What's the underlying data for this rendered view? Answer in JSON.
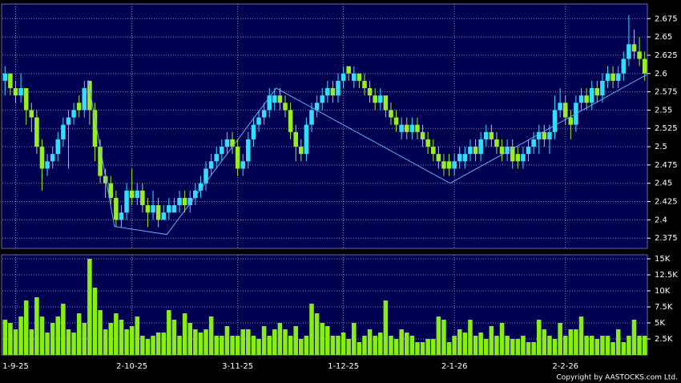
{
  "chart_data": {
    "type": "candlestick",
    "categories": [
      null,
      null,
      "1-9-25",
      null,
      null,
      null,
      null,
      null,
      null,
      null,
      null,
      null,
      null,
      null,
      null,
      null,
      null,
      null,
      null,
      null,
      null,
      null,
      null,
      null,
      "2-10-25",
      null,
      null,
      null,
      null,
      null,
      null,
      null,
      null,
      null,
      null,
      null,
      null,
      null,
      null,
      null,
      null,
      null,
      null,
      null,
      "3-11-25",
      null,
      null,
      null,
      null,
      null,
      null,
      null,
      null,
      null,
      null,
      null,
      null,
      null,
      null,
      null,
      null,
      null,
      null,
      null,
      "1-12-25",
      null,
      null,
      null,
      null,
      null,
      null,
      null,
      null,
      null,
      null,
      null,
      null,
      null,
      null,
      null,
      null,
      null,
      null,
      null,
      null,
      "2-1-26",
      null,
      null,
      null,
      null,
      null,
      null,
      null,
      null,
      null,
      null,
      null,
      null,
      null,
      null,
      null,
      null,
      null,
      null,
      null,
      null,
      "2-2-26",
      null,
      null,
      null,
      null,
      null,
      null,
      null,
      null,
      null,
      null,
      null,
      null,
      null,
      null,
      null
    ],
    "price": {
      "up_color": "#33ddff",
      "down_color": "#99ee22",
      "ylim": [
        2.361,
        2.695
      ],
      "yticks": [
        2.375,
        2.4,
        2.425,
        2.45,
        2.475,
        2.5,
        2.525,
        2.55,
        2.575,
        2.6,
        2.625,
        2.65,
        2.675
      ],
      "values": [
        [
          2.59,
          2.61,
          2.57,
          2.6
        ],
        [
          2.6,
          2.6,
          2.57,
          2.58
        ],
        [
          2.58,
          2.59,
          2.56,
          2.57
        ],
        [
          2.57,
          2.6,
          2.56,
          2.58
        ],
        [
          2.58,
          2.58,
          2.53,
          2.55
        ],
        [
          2.55,
          2.56,
          2.52,
          2.54
        ],
        [
          2.54,
          2.55,
          2.49,
          2.5
        ],
        [
          2.5,
          2.51,
          2.44,
          2.47
        ],
        [
          2.47,
          2.49,
          2.46,
          2.48
        ],
        [
          2.48,
          2.5,
          2.47,
          2.49
        ],
        [
          2.49,
          2.52,
          2.48,
          2.51
        ],
        [
          2.51,
          2.54,
          2.5,
          2.53
        ],
        [
          2.53,
          2.55,
          2.47,
          2.54
        ],
        [
          2.54,
          2.56,
          2.53,
          2.55
        ],
        [
          2.56,
          2.57,
          2.54,
          2.55
        ],
        [
          2.55,
          2.59,
          2.54,
          2.58
        ],
        [
          2.59,
          2.59,
          2.53,
          2.55
        ],
        [
          2.55,
          2.56,
          2.48,
          2.5
        ],
        [
          2.5,
          2.51,
          2.45,
          2.46
        ],
        [
          2.46,
          2.47,
          2.43,
          2.45
        ],
        [
          2.45,
          2.46,
          2.42,
          2.43
        ],
        [
          2.43,
          2.44,
          2.39,
          2.4
        ],
        [
          2.4,
          2.42,
          2.39,
          2.41
        ],
        [
          2.41,
          2.45,
          2.4,
          2.44
        ],
        [
          2.44,
          2.47,
          2.42,
          2.43
        ],
        [
          2.43,
          2.45,
          2.42,
          2.44
        ],
        [
          2.44,
          2.45,
          2.41,
          2.42
        ],
        [
          2.42,
          2.43,
          2.39,
          2.41
        ],
        [
          2.41,
          2.44,
          2.4,
          2.42
        ],
        [
          2.42,
          2.43,
          2.39,
          2.4
        ],
        [
          2.4,
          2.42,
          2.4,
          2.41
        ],
        [
          2.41,
          2.43,
          2.4,
          2.42
        ],
        [
          2.41,
          2.43,
          2.41,
          2.42
        ],
        [
          2.42,
          2.44,
          2.41,
          2.43
        ],
        [
          2.43,
          2.44,
          2.41,
          2.42
        ],
        [
          2.42,
          2.44,
          2.41,
          2.43
        ],
        [
          2.43,
          2.45,
          2.42,
          2.44
        ],
        [
          2.44,
          2.46,
          2.43,
          2.45
        ],
        [
          2.45,
          2.48,
          2.44,
          2.47
        ],
        [
          2.47,
          2.49,
          2.46,
          2.48
        ],
        [
          2.48,
          2.5,
          2.47,
          2.49
        ],
        [
          2.49,
          2.51,
          2.48,
          2.5
        ],
        [
          2.5,
          2.52,
          2.49,
          2.51
        ],
        [
          2.51,
          2.52,
          2.49,
          2.5
        ],
        [
          2.5,
          2.51,
          2.46,
          2.47
        ],
        [
          2.47,
          2.49,
          2.46,
          2.48
        ],
        [
          2.48,
          2.52,
          2.47,
          2.51
        ],
        [
          2.51,
          2.54,
          2.5,
          2.53
        ],
        [
          2.53,
          2.55,
          2.52,
          2.54
        ],
        [
          2.54,
          2.56,
          2.53,
          2.55
        ],
        [
          2.55,
          2.58,
          2.54,
          2.57
        ],
        [
          2.56,
          2.58,
          2.55,
          2.57
        ],
        [
          2.57,
          2.58,
          2.55,
          2.56
        ],
        [
          2.56,
          2.57,
          2.54,
          2.55
        ],
        [
          2.55,
          2.56,
          2.51,
          2.52
        ],
        [
          2.52,
          2.53,
          2.48,
          2.5
        ],
        [
          2.5,
          2.51,
          2.48,
          2.49
        ],
        [
          2.49,
          2.54,
          2.48,
          2.53
        ],
        [
          2.53,
          2.56,
          2.52,
          2.55
        ],
        [
          2.55,
          2.57,
          2.54,
          2.56
        ],
        [
          2.56,
          2.58,
          2.55,
          2.57
        ],
        [
          2.57,
          2.59,
          2.56,
          2.58
        ],
        [
          2.58,
          2.59,
          2.56,
          2.57
        ],
        [
          2.57,
          2.6,
          2.56,
          2.59
        ],
        [
          2.59,
          2.61,
          2.58,
          2.6
        ],
        [
          2.61,
          2.61,
          2.59,
          2.6
        ],
        [
          2.59,
          2.61,
          2.58,
          2.6
        ],
        [
          2.6,
          2.6,
          2.58,
          2.59
        ],
        [
          2.59,
          2.6,
          2.57,
          2.58
        ],
        [
          2.58,
          2.59,
          2.56,
          2.57
        ],
        [
          2.57,
          2.58,
          2.55,
          2.56
        ],
        [
          2.56,
          2.58,
          2.55,
          2.57
        ],
        [
          2.57,
          2.57,
          2.54,
          2.55
        ],
        [
          2.55,
          2.56,
          2.53,
          2.54
        ],
        [
          2.54,
          2.55,
          2.52,
          2.53
        ],
        [
          2.52,
          2.54,
          2.51,
          2.53
        ],
        [
          2.53,
          2.54,
          2.51,
          2.52
        ],
        [
          2.52,
          2.54,
          2.51,
          2.53
        ],
        [
          2.53,
          2.54,
          2.51,
          2.52
        ],
        [
          2.52,
          2.53,
          2.5,
          2.51
        ],
        [
          2.51,
          2.52,
          2.49,
          2.5
        ],
        [
          2.5,
          2.51,
          2.48,
          2.49
        ],
        [
          2.49,
          2.5,
          2.47,
          2.48
        ],
        [
          2.48,
          2.49,
          2.46,
          2.47
        ],
        [
          2.48,
          2.49,
          2.46,
          2.47
        ],
        [
          2.47,
          2.49,
          2.46,
          2.48
        ],
        [
          2.48,
          2.5,
          2.47,
          2.49
        ],
        [
          2.48,
          2.5,
          2.47,
          2.49
        ],
        [
          2.49,
          2.51,
          2.48,
          2.5
        ],
        [
          2.5,
          2.51,
          2.48,
          2.49
        ],
        [
          2.49,
          2.52,
          2.48,
          2.51
        ],
        [
          2.51,
          2.53,
          2.5,
          2.52
        ],
        [
          2.52,
          2.53,
          2.5,
          2.51
        ],
        [
          2.51,
          2.52,
          2.49,
          2.5
        ],
        [
          2.5,
          2.51,
          2.48,
          2.49
        ],
        [
          2.49,
          2.51,
          2.48,
          2.5
        ],
        [
          2.5,
          2.51,
          2.47,
          2.48
        ],
        [
          2.49,
          2.5,
          2.47,
          2.48
        ],
        [
          2.48,
          2.5,
          2.47,
          2.49
        ],
        [
          2.49,
          2.51,
          2.48,
          2.5
        ],
        [
          2.5,
          2.52,
          2.49,
          2.51
        ],
        [
          2.51,
          2.53,
          2.49,
          2.52
        ],
        [
          2.52,
          2.53,
          2.5,
          2.51
        ],
        [
          2.51,
          2.53,
          2.49,
          2.52
        ],
        [
          2.52,
          2.57,
          2.51,
          2.55
        ],
        [
          2.55,
          2.58,
          2.54,
          2.56
        ],
        [
          2.56,
          2.57,
          2.53,
          2.54
        ],
        [
          2.54,
          2.55,
          2.51,
          2.53
        ],
        [
          2.53,
          2.57,
          2.52,
          2.56
        ],
        [
          2.56,
          2.58,
          2.55,
          2.57
        ],
        [
          2.57,
          2.58,
          2.55,
          2.56
        ],
        [
          2.56,
          2.59,
          2.55,
          2.58
        ],
        [
          2.58,
          2.59,
          2.56,
          2.57
        ],
        [
          2.57,
          2.6,
          2.56,
          2.59
        ],
        [
          2.59,
          2.61,
          2.58,
          2.6
        ],
        [
          2.6,
          2.61,
          2.58,
          2.59
        ],
        [
          2.59,
          2.61,
          2.58,
          2.6
        ],
        [
          2.6,
          2.63,
          2.59,
          2.62
        ],
        [
          2.62,
          2.68,
          2.61,
          2.64
        ],
        [
          2.64,
          2.66,
          2.62,
          2.63
        ],
        [
          2.63,
          2.65,
          2.61,
          2.62
        ],
        [
          2.62,
          2.63,
          2.59,
          2.6
        ]
      ]
    },
    "trendline": {
      "color": "#66aaff",
      "x": [
        15.7,
        20.7,
        30.6,
        51.3,
        84.2,
        121.5
      ],
      "values": [
        2.591,
        2.391,
        2.38,
        2.58,
        2.45,
        2.599
      ]
    },
    "volume": {
      "color": "#88ee11",
      "ylim": [
        0,
        15625
      ],
      "yticks": [
        {
          "value": 2500,
          "label": "2.5K"
        },
        {
          "value": 5000,
          "label": "5K"
        },
        {
          "value": 7500,
          "label": "7.5K"
        },
        {
          "value": 10000,
          "label": "10K"
        },
        {
          "value": 12500,
          "label": "12.5K"
        },
        {
          "value": 15000,
          "label": "15K"
        }
      ],
      "values": [
        5500,
        5000,
        4000,
        6000,
        8500,
        4000,
        9000,
        6000,
        3500,
        5000,
        6000,
        8000,
        4000,
        3500,
        6500,
        5000,
        15000,
        10500,
        7000,
        4000,
        5000,
        6500,
        5500,
        4000,
        4500,
        6000,
        3000,
        2500,
        3000,
        3500,
        3500,
        7000,
        5500,
        3000,
        6500,
        5000,
        4000,
        3500,
        4000,
        6000,
        3000,
        3000,
        4500,
        3000,
        3000,
        4000,
        4000,
        3000,
        2500,
        4500,
        3000,
        4000,
        5000,
        4000,
        3000,
        4500,
        2500,
        3000,
        8000,
        6500,
        5000,
        4500,
        3000,
        3000,
        3500,
        2500,
        5000,
        2000,
        3000,
        4000,
        3000,
        3500,
        8500,
        3000,
        2500,
        4000,
        3500,
        3000,
        2000,
        2000,
        2500,
        2500,
        6000,
        5500,
        2000,
        3000,
        4000,
        3500,
        5500,
        3000,
        3500,
        2500,
        4500,
        3000,
        5000,
        3000,
        2500,
        2500,
        3000,
        2000,
        2000,
        5500,
        4000,
        3000,
        2500,
        5000,
        3000,
        4000,
        4000,
        6000,
        3000,
        3000,
        2500,
        3000,
        3000,
        2000,
        4000,
        2000,
        3000,
        5500,
        3000,
        3000
      ]
    },
    "credit": "Copyright by AASTOCKS.com Ltd."
  }
}
